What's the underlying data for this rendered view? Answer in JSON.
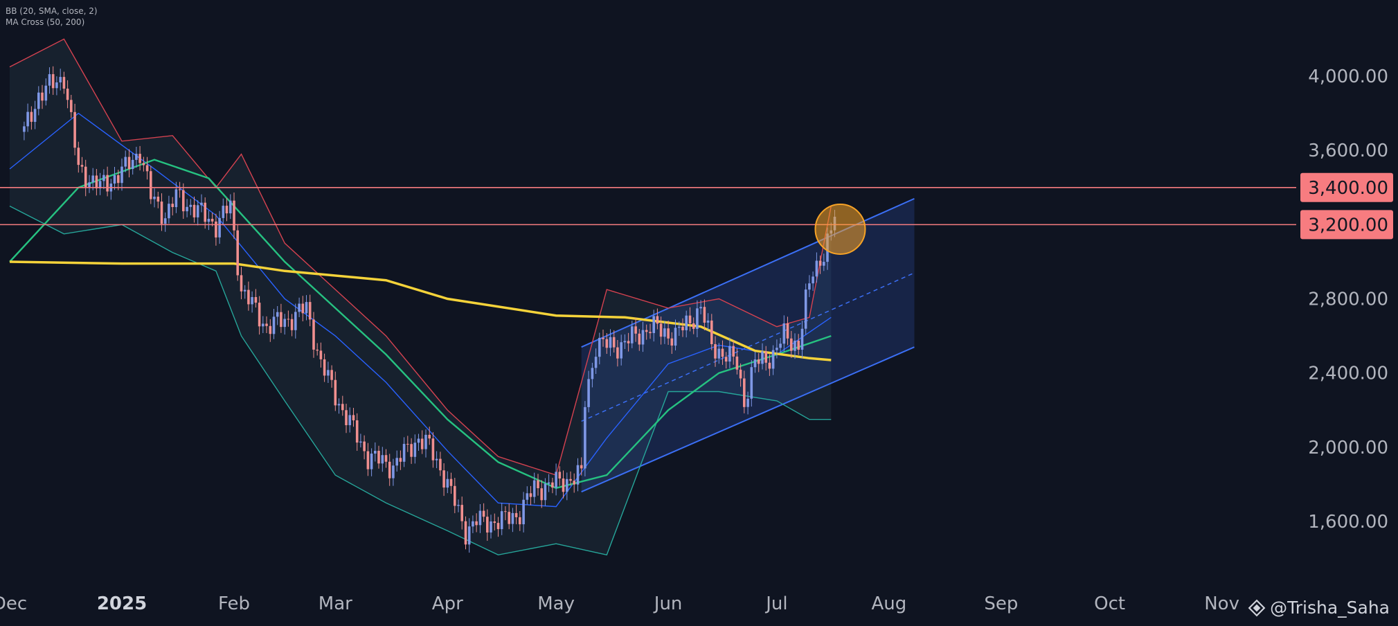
{
  "legend": {
    "bb": "BB (20, SMA, close, 2)",
    "ma_cross": "MA Cross (50, 200)"
  },
  "watermark": {
    "icon": "tradingview-diamond-icon",
    "text": "@Trisha_Saha"
  },
  "colors": {
    "background": "#0f1421",
    "up_candle": "#7f98e6",
    "down_candle": "#f08f8f",
    "bb_upper": "#d64250",
    "bb_lower": "#26a69a",
    "bb_basis": "#2962ff",
    "ma50": "#26c281",
    "ma200": "#f5d33a",
    "horizontal_line": "#f77c80",
    "channel": "#3b6ff5",
    "highlight_circle": "#f7a326"
  },
  "chart_data": {
    "type": "candlestick",
    "ylim": [
      1380,
      4280
    ],
    "y_ticks": [
      {
        "value": 4000,
        "label": "4,000.00"
      },
      {
        "value": 3600,
        "label": "3,600.00"
      },
      {
        "value": 2800,
        "label": "2,800.00"
      },
      {
        "value": 2400,
        "label": "2,400.00"
      },
      {
        "value": 2000,
        "label": "2,000.00"
      },
      {
        "value": 1600,
        "label": "1,600.00"
      }
    ],
    "x_ticks": [
      {
        "date": "2024-12-01",
        "label": "Dec"
      },
      {
        "date": "2025-01-01",
        "label": "2025",
        "bold": true
      },
      {
        "date": "2025-02-01",
        "label": "Feb"
      },
      {
        "date": "2025-03-01",
        "label": "Mar"
      },
      {
        "date": "2025-04-01",
        "label": "Apr"
      },
      {
        "date": "2025-05-01",
        "label": "May"
      },
      {
        "date": "2025-06-01",
        "label": "Jun"
      },
      {
        "date": "2025-07-01",
        "label": "Jul"
      },
      {
        "date": "2025-08-01",
        "label": "Aug"
      },
      {
        "date": "2025-09-01",
        "label": "Sep"
      },
      {
        "date": "2025-10-01",
        "label": "Oct"
      },
      {
        "date": "2025-11-01",
        "label": "Nov"
      }
    ],
    "horizontal_levels": [
      {
        "value": 3400,
        "label": "3,400.00"
      },
      {
        "value": 3200,
        "label": "3,200.00"
      }
    ],
    "price_path": [
      [
        "2024-12-05",
        3700
      ],
      [
        "2024-12-09",
        3900
      ],
      [
        "2024-12-16",
        4000
      ],
      [
        "2024-12-20",
        3500
      ],
      [
        "2024-12-26",
        3400
      ],
      [
        "2025-01-02",
        3500
      ],
      [
        "2025-01-06",
        3600
      ],
      [
        "2025-01-09",
        3350
      ],
      [
        "2025-01-13",
        3250
      ],
      [
        "2025-01-16",
        3350
      ],
      [
        "2025-01-20",
        3300
      ],
      [
        "2025-01-27",
        3200
      ],
      [
        "2025-01-31",
        3300
      ],
      [
        "2025-02-03",
        2850
      ],
      [
        "2025-02-10",
        2650
      ],
      [
        "2025-02-17",
        2700
      ],
      [
        "2025-02-21",
        2750
      ],
      [
        "2025-02-25",
        2450
      ],
      [
        "2025-03-03",
        2200
      ],
      [
        "2025-03-10",
        1950
      ],
      [
        "2025-03-17",
        1900
      ],
      [
        "2025-03-24",
        2050
      ],
      [
        "2025-03-27",
        2000
      ],
      [
        "2025-03-31",
        1850
      ],
      [
        "2025-04-06",
        1550
      ],
      [
        "2025-04-09",
        1600
      ],
      [
        "2025-04-16",
        1600
      ],
      [
        "2025-04-21",
        1650
      ],
      [
        "2025-04-25",
        1780
      ],
      [
        "2025-04-30",
        1800
      ],
      [
        "2025-05-08",
        1850
      ],
      [
        "2025-05-09",
        2250
      ],
      [
        "2025-05-12",
        2550
      ],
      [
        "2025-05-19",
        2550
      ],
      [
        "2025-05-27",
        2650
      ],
      [
        "2025-06-03",
        2600
      ],
      [
        "2025-06-10",
        2750
      ],
      [
        "2025-06-13",
        2550
      ],
      [
        "2025-06-20",
        2450
      ],
      [
        "2025-06-22",
        2250
      ],
      [
        "2025-06-25",
        2450
      ],
      [
        "2025-06-30",
        2500
      ],
      [
        "2025-07-03",
        2600
      ],
      [
        "2025-07-07",
        2550
      ],
      [
        "2025-07-09",
        2780
      ],
      [
        "2025-07-11",
        2950
      ],
      [
        "2025-07-14",
        3050
      ],
      [
        "2025-07-16",
        3150
      ],
      [
        "2025-07-17",
        3250
      ]
    ],
    "bb_upper": [
      [
        "2024-12-01",
        4050
      ],
      [
        "2024-12-16",
        4200
      ],
      [
        "2025-01-01",
        3650
      ],
      [
        "2025-01-15",
        3680
      ],
      [
        "2025-01-27",
        3400
      ],
      [
        "2025-02-03",
        3580
      ],
      [
        "2025-02-15",
        3100
      ],
      [
        "2025-03-01",
        2850
      ],
      [
        "2025-03-15",
        2600
      ],
      [
        "2025-04-01",
        2200
      ],
      [
        "2025-04-15",
        1950
      ],
      [
        "2025-05-01",
        1850
      ],
      [
        "2025-05-15",
        2850
      ],
      [
        "2025-06-01",
        2750
      ],
      [
        "2025-06-15",
        2800
      ],
      [
        "2025-07-01",
        2650
      ],
      [
        "2025-07-10",
        2700
      ],
      [
        "2025-07-16",
        3300
      ]
    ],
    "bb_lower": [
      [
        "2024-12-01",
        3300
      ],
      [
        "2024-12-16",
        3150
      ],
      [
        "2025-01-01",
        3200
      ],
      [
        "2025-01-15",
        3050
      ],
      [
        "2025-01-27",
        2950
      ],
      [
        "2025-02-03",
        2600
      ],
      [
        "2025-02-15",
        2250
      ],
      [
        "2025-03-01",
        1850
      ],
      [
        "2025-03-15",
        1700
      ],
      [
        "2025-04-01",
        1550
      ],
      [
        "2025-04-15",
        1420
      ],
      [
        "2025-05-01",
        1480
      ],
      [
        "2025-05-15",
        1420
      ],
      [
        "2025-06-01",
        2300
      ],
      [
        "2025-06-15",
        2300
      ],
      [
        "2025-07-01",
        2250
      ],
      [
        "2025-07-10",
        2150
      ],
      [
        "2025-07-16",
        2150
      ]
    ],
    "bb_basis": [
      [
        "2024-12-01",
        3500
      ],
      [
        "2024-12-20",
        3800
      ],
      [
        "2025-01-10",
        3500
      ],
      [
        "2025-01-27",
        3250
      ],
      [
        "2025-02-15",
        2800
      ],
      [
        "2025-03-01",
        2600
      ],
      [
        "2025-03-15",
        2350
      ],
      [
        "2025-04-01",
        1980
      ],
      [
        "2025-04-15",
        1700
      ],
      [
        "2025-05-01",
        1680
      ],
      [
        "2025-05-15",
        2050
      ],
      [
        "2025-06-01",
        2450
      ],
      [
        "2025-06-15",
        2550
      ],
      [
        "2025-07-01",
        2500
      ],
      [
        "2025-07-16",
        2700
      ]
    ],
    "ma50": [
      [
        "2024-12-01",
        3000
      ],
      [
        "2024-12-20",
        3400
      ],
      [
        "2025-01-10",
        3550
      ],
      [
        "2025-01-25",
        3450
      ],
      [
        "2025-02-15",
        3000
      ],
      [
        "2025-03-01",
        2750
      ],
      [
        "2025-03-15",
        2500
      ],
      [
        "2025-04-01",
        2150
      ],
      [
        "2025-04-15",
        1920
      ],
      [
        "2025-05-01",
        1780
      ],
      [
        "2025-05-15",
        1850
      ],
      [
        "2025-06-01",
        2200
      ],
      [
        "2025-06-15",
        2400
      ],
      [
        "2025-07-01",
        2500
      ],
      [
        "2025-07-16",
        2600
      ]
    ],
    "ma200": [
      [
        "2024-12-01",
        3000
      ],
      [
        "2025-01-01",
        2990
      ],
      [
        "2025-02-01",
        2990
      ],
      [
        "2025-02-15",
        2950
      ],
      [
        "2025-03-15",
        2900
      ],
      [
        "2025-04-01",
        2800
      ],
      [
        "2025-05-01",
        2710
      ],
      [
        "2025-05-20",
        2700
      ],
      [
        "2025-06-10",
        2650
      ],
      [
        "2025-06-25",
        2520
      ],
      [
        "2025-07-10",
        2480
      ],
      [
        "2025-07-16",
        2470
      ]
    ],
    "regression_channel": {
      "start": {
        "date": "2025-05-08",
        "upper": 2540,
        "mid": 2140,
        "lower": 1760
      },
      "end": {
        "date": "2025-08-08",
        "upper": 3340,
        "mid": 2940,
        "lower": 2540
      }
    },
    "highlight": {
      "date": "2025-07-17",
      "value": 3220
    }
  }
}
